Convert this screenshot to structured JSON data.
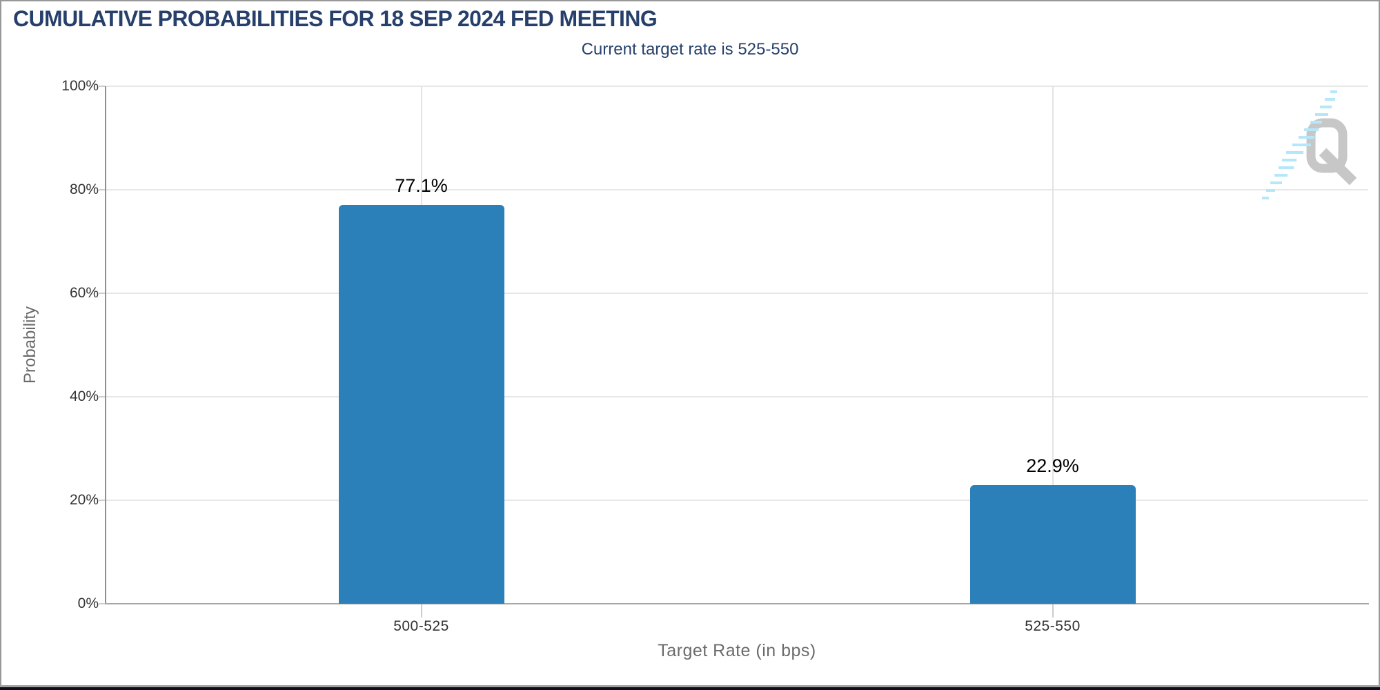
{
  "header": {
    "title": "CUMULATIVE PROBABILITIES FOR 18 SEP 2024 FED MEETING",
    "subtitle": "Current target rate is 525-550"
  },
  "chart_data": {
    "type": "bar",
    "title": "CUMULATIVE PROBABILITIES FOR 18 SEP 2024 FED MEETING",
    "subtitle": "Current target rate is 525-550",
    "categories": [
      "500-525",
      "525-550"
    ],
    "values": [
      77.1,
      22.9
    ],
    "value_labels": [
      "77.1%",
      "22.9%"
    ],
    "xlabel": "Target Rate (in bps)",
    "ylabel": "Probability",
    "ylim": [
      0,
      100
    ],
    "ytick_labels": [
      "0%",
      "20%",
      "40%",
      "60%",
      "80%",
      "100%"
    ],
    "grid": true,
    "legend": "none",
    "bar_color": "#2b80b9",
    "title_color": "#27406b",
    "axis_label_color": "#6b6b6b",
    "tick_label_color": "#333333",
    "gridline_color": "#e7e7e7"
  },
  "watermark": {
    "letter": "Q",
    "letter_color": "#c7c7c7",
    "stripe_color": "#b5e7fa"
  }
}
